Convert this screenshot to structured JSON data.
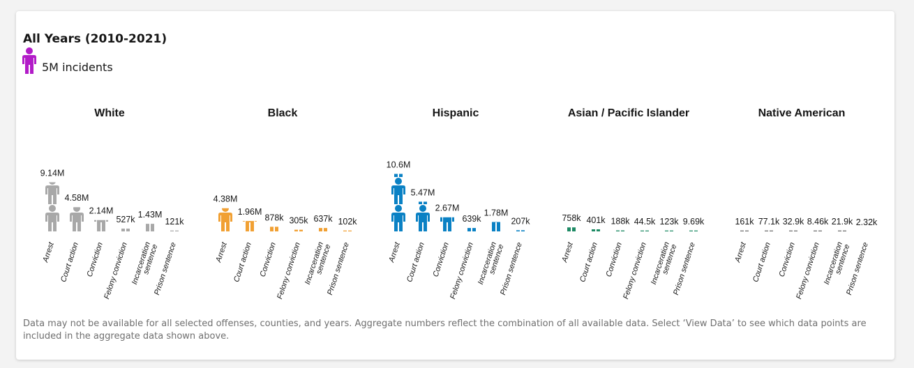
{
  "header": {
    "title": "All Years (2010-2021)"
  },
  "legend": {
    "icon": "person-icon",
    "color": "#b21bc8",
    "label": "5M incidents",
    "unit_value": 5000000
  },
  "footnote": "Data may not be available for all selected offenses, counties, and years. Aggregate numbers reflect the combination of all available data. Select ‘View Data’ to see which data points are included in the aggregate data shown above.",
  "chart_data": {
    "type": "bar",
    "title": "All Years (2010-2021)",
    "unit": "Each person icon represents 5M incidents",
    "categories": [
      "Arrest",
      "Court action",
      "Conviction",
      "Felony conviction",
      "Incarceration sentence",
      "Prison sentence"
    ],
    "category_lines": [
      [
        "Arrest"
      ],
      [
        "Court action"
      ],
      [
        "Conviction"
      ],
      [
        "Felony conviction"
      ],
      [
        "Incarceration",
        "sentence"
      ],
      [
        "Prison sentence"
      ]
    ],
    "series": [
      {
        "name": "White",
        "color": "#a8a8a8",
        "values": [
          9140000,
          4580000,
          2140000,
          527000,
          1430000,
          121000
        ],
        "labels": [
          "9.14M",
          "4.58M",
          "2.14M",
          "527k",
          "1.43M",
          "121k"
        ]
      },
      {
        "name": "Black",
        "color": "#f1a033",
        "values": [
          4380000,
          1960000,
          878000,
          305000,
          637000,
          102000
        ],
        "labels": [
          "4.38M",
          "1.96M",
          "878k",
          "305k",
          "637k",
          "102k"
        ]
      },
      {
        "name": "Hispanic",
        "color": "#0a81c4",
        "values": [
          10600000,
          5470000,
          2670000,
          639000,
          1780000,
          207000
        ],
        "labels": [
          "10.6M",
          "5.47M",
          "2.67M",
          "639k",
          "1.78M",
          "207k"
        ]
      },
      {
        "name": "Asian / Pacific Islander",
        "color": "#1d8a64",
        "values": [
          758000,
          401000,
          188000,
          44500,
          123000,
          9690
        ],
        "labels": [
          "758k",
          "401k",
          "188k",
          "44.5k",
          "123k",
          "9.69k"
        ]
      },
      {
        "name": "Native American",
        "color": "#6a6a6a",
        "values": [
          161000,
          77100,
          32900,
          8460,
          21900,
          2320
        ],
        "labels": [
          "161k",
          "77.1k",
          "32.9k",
          "8.46k",
          "21.9k",
          "2.32k"
        ]
      }
    ]
  }
}
